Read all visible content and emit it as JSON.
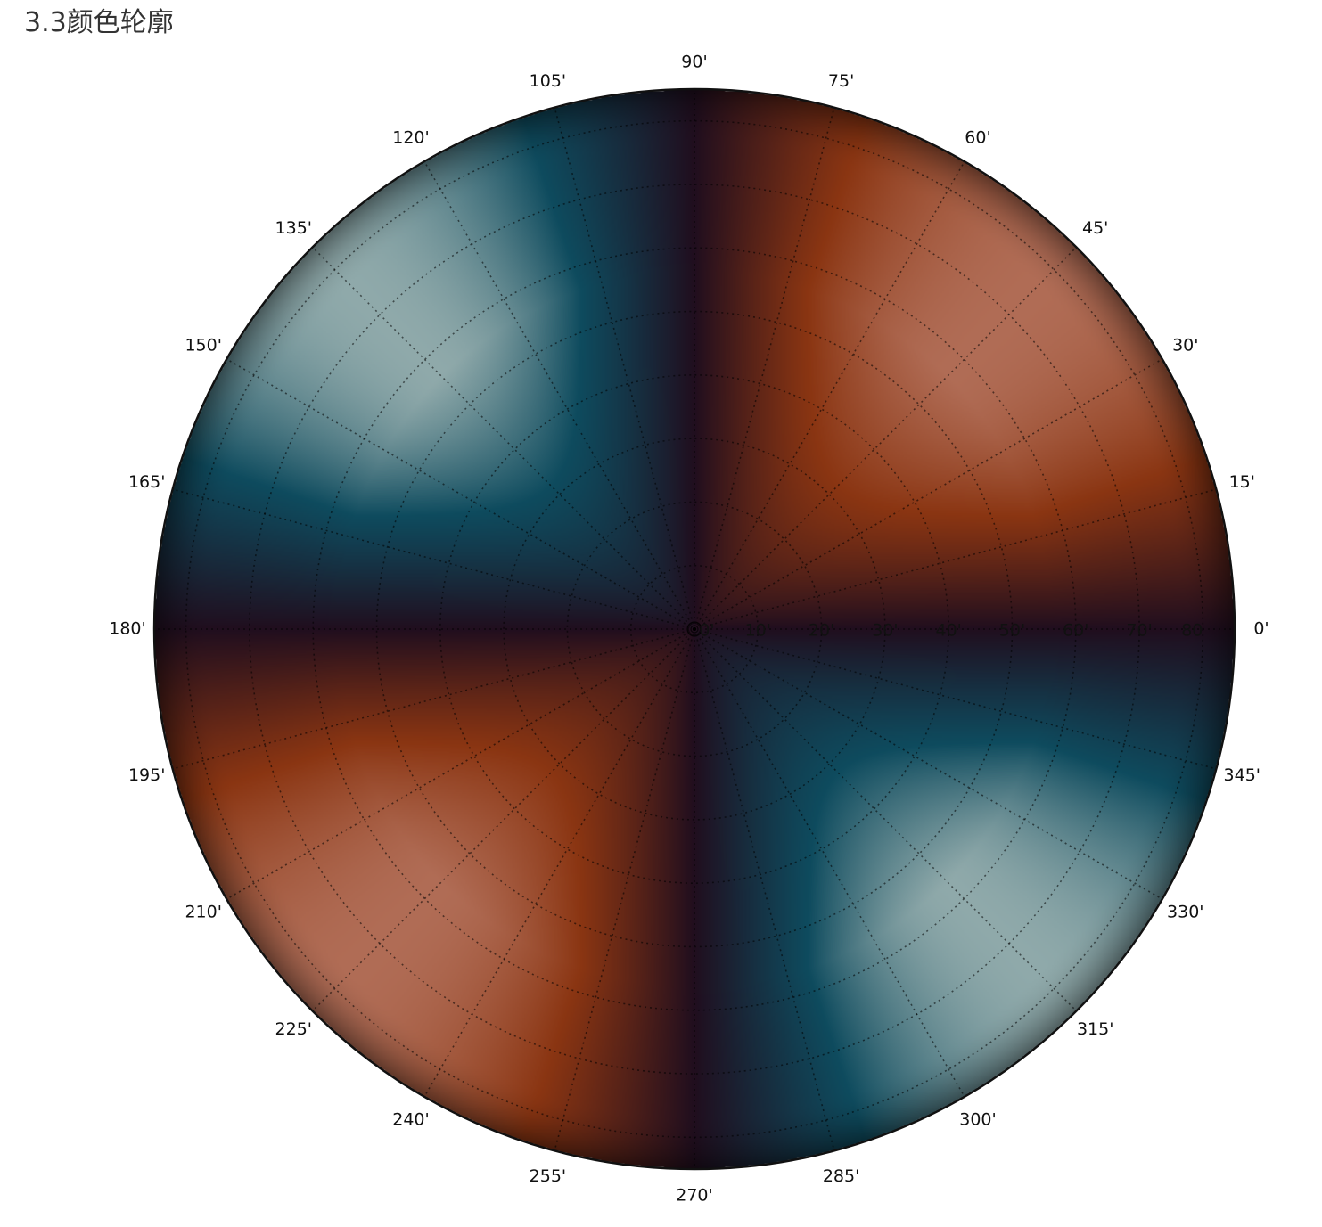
{
  "page": {
    "heading": "3.3颜色轮廓"
  },
  "chart_data": {
    "type": "heatmap",
    "projection": "polar",
    "title": "",
    "theta_unit": "'",
    "theta_tick_labels": [
      "0'",
      "15'",
      "30'",
      "45'",
      "60'",
      "75'",
      "90'",
      "105'",
      "120'",
      "135'",
      "150'",
      "165'",
      "180'",
      "195'",
      "210'",
      "225'",
      "240'",
      "255'",
      "270'",
      "285'",
      "300'",
      "315'",
      "330'",
      "345'"
    ],
    "theta_ticks_deg": [
      0,
      15,
      30,
      45,
      60,
      75,
      90,
      105,
      120,
      135,
      150,
      165,
      180,
      195,
      210,
      225,
      240,
      255,
      270,
      285,
      300,
      315,
      330,
      345
    ],
    "r_tick_labels": [
      "0'",
      "10'",
      "20'",
      "30'",
      "40'",
      "50'",
      "60'",
      "70'",
      "80"
    ],
    "r_ticks": [
      0,
      10,
      20,
      30,
      40,
      50,
      60,
      70,
      80
    ],
    "rlim": [
      0,
      85
    ],
    "grid": true,
    "grid_style": "dotted",
    "colormap": "diverging blue-dark-red",
    "colors": {
      "positive_peak": "#8a3512",
      "positive_light": "#b06c55",
      "zero": "#200e1e",
      "negative_peak": "#0e4b5e",
      "negative_light": "#8fa9aa"
    },
    "field": {
      "description_formula": "z = sin(2*theta) * f(r), peaking near r = 55 and fading at center and edge",
      "angular_frequency": 2,
      "phase_deg": 0,
      "peak_radius": 55
    }
  }
}
